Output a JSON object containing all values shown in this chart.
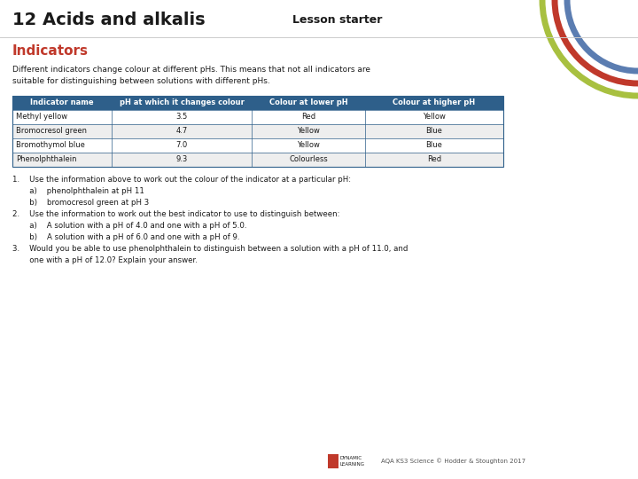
{
  "title": "12 Acids and alkalis",
  "lesson_starter": "Lesson starter",
  "subtitle": "Indicators",
  "description": "Different indicators change colour at different pHs. This means that not all indicators are\nsuitable for distinguishing between solutions with different pHs.",
  "table_headers": [
    "Indicator name",
    "pH at which it changes colour",
    "Colour at lower pH",
    "Colour at higher pH"
  ],
  "table_rows": [
    [
      "Methyl yellow",
      "3.5",
      "Red",
      "Yellow"
    ],
    [
      "Bromocresol green",
      "4.7",
      "Yellow",
      "Blue"
    ],
    [
      "Bromothymol blue",
      "7.0",
      "Yellow",
      "Blue"
    ],
    [
      "Phenolphthalein",
      "9.3",
      "Colourless",
      "Red"
    ]
  ],
  "header_bg": "#2e5f8a",
  "header_text": "#ffffff",
  "row_bg_odd": "#ffffff",
  "row_bg_even": "#eeeeee",
  "border_color": "#2e5f8a",
  "title_color": "#1a1a1a",
  "lesson_starter_color": "#1a1a1a",
  "subtitle_color": "#c0392b",
  "body_text_color": "#1a1a1a",
  "circle_colors": [
    "#5b7db1",
    "#c0392b",
    "#a8c040"
  ],
  "questions_q1": "1.    Use the information above to work out the colour of the indicator at a particular pH:",
  "questions_q1a": "       a)    phenolphthalein at pH 11",
  "questions_q1b": "       b)    bromocresol green at pH 3",
  "questions_q2": "2.    Use the information to work out the best indicator to use to distinguish between:",
  "questions_q2a": "       a)    A solution with a pH of 4.0 and one with a pH of 5.0.",
  "questions_q2b": "       b)    A solution with a pH of 6.0 and one with a pH of 9.",
  "questions_q3a": "3.    Would you be able to use phenolphthalein to distinguish between a solution with a pH of 11.0, and",
  "questions_q3b": "       one with a pH of 12.0? Explain your answer.",
  "footer": "AQA KS3 Science © Hodder & Stoughton 2017",
  "bg_color": "#ffffff",
  "title_fontsize": 14,
  "lesson_starter_fontsize": 9,
  "subtitle_fontsize": 11,
  "desc_fontsize": 6.5,
  "table_header_fontsize": 6.0,
  "table_body_fontsize": 6.0,
  "question_fontsize": 6.2,
  "footer_fontsize": 5.0
}
